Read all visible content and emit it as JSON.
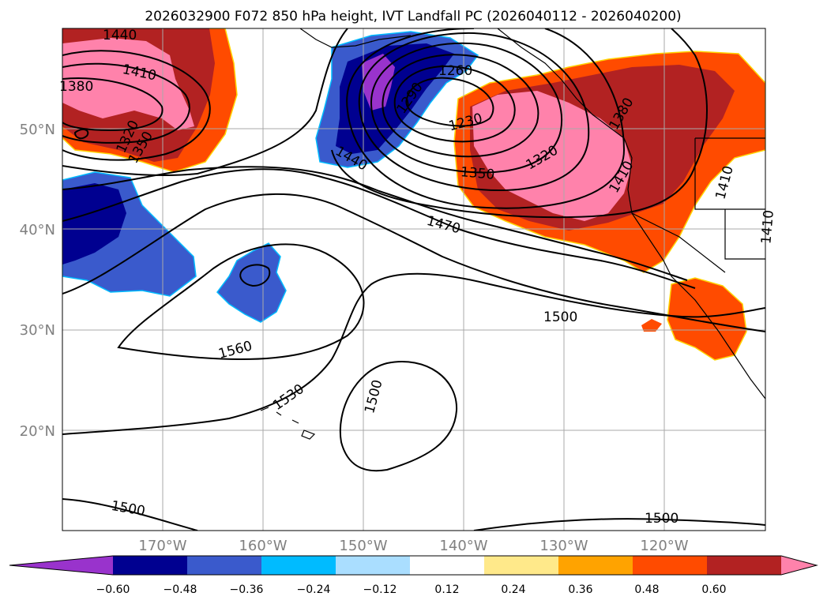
{
  "title": "2026032900 F072 850 hPa height, IVT Landfall PC (2026040112 - 2026040200)",
  "lat_labels": [
    "50°N",
    "40°N",
    "30°N",
    "20°N"
  ],
  "lon_labels": [
    "170°W",
    "160°W",
    "150°W",
    "140°W",
    "130°W",
    "120°W"
  ],
  "contour_labels": [
    "1440",
    "1410",
    "1380",
    "1320",
    "1350",
    "1260",
    "1230",
    "1290",
    "1320",
    "1350",
    "1380",
    "1410",
    "1410",
    "1410",
    "1440",
    "1470",
    "1500",
    "1560",
    "1530",
    "1500",
    "1500",
    "1500"
  ],
  "colorbar": {
    "ticks": [
      "−0.60",
      "−0.48",
      "−0.36",
      "−0.24",
      "−0.12",
      "0.12",
      "0.24",
      "0.36",
      "0.48",
      "0.60"
    ],
    "colors": [
      "#9933cc",
      "#000090",
      "#3a5acc",
      "#00bbff",
      "#aadeff",
      "#ffffff",
      "#ffe98a",
      "#ffa300",
      "#ff4b00",
      "#b22222",
      "#ff82ab"
    ]
  }
}
